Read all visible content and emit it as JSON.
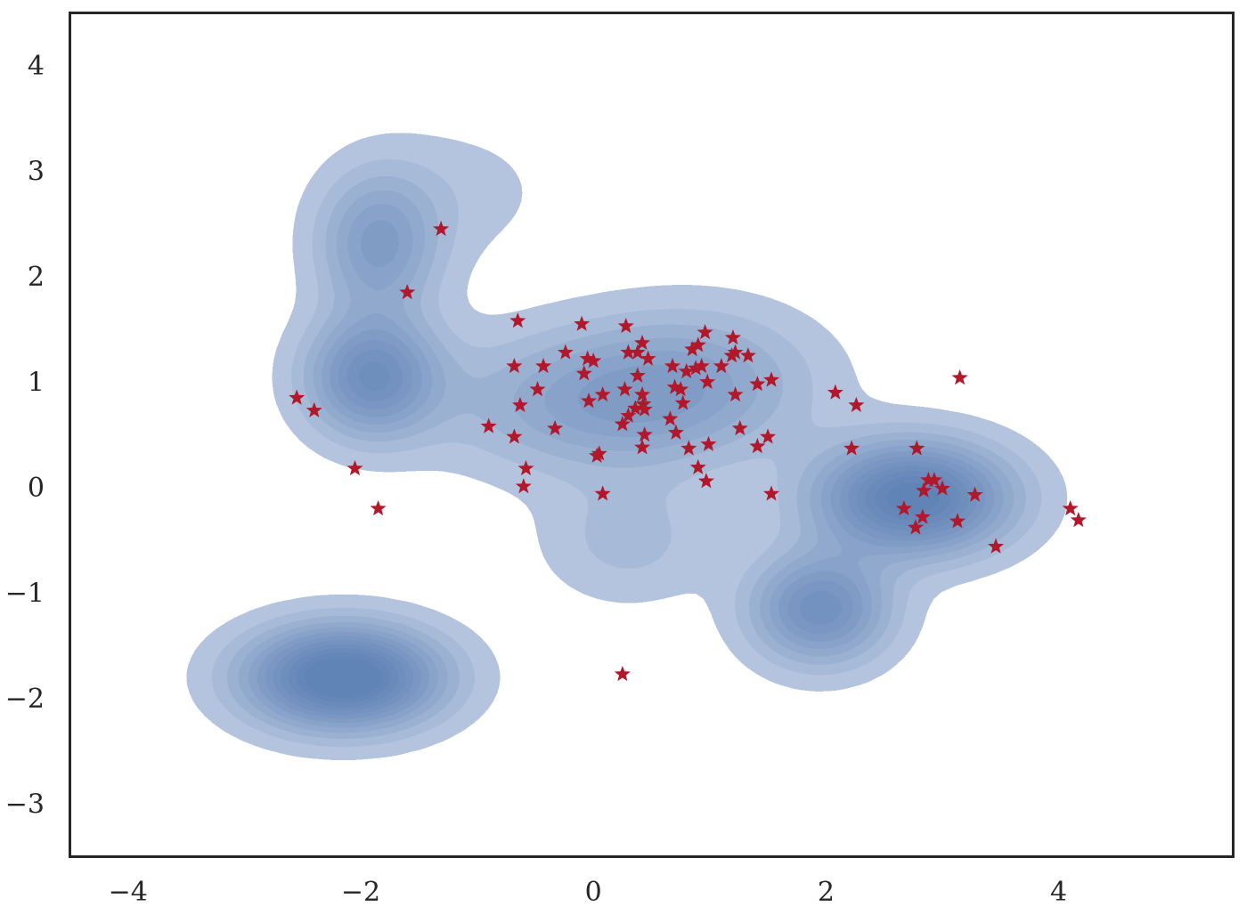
{
  "chart_data": {
    "type": "scatter",
    "title": "",
    "xlabel": "",
    "ylabel": "",
    "xlim": [
      -4.5,
      5.5
    ],
    "ylim": [
      -3.5,
      4.5
    ],
    "grid": false,
    "x_ticks": [
      -4,
      -2,
      0,
      2,
      4
    ],
    "y_ticks": [
      -3,
      -2,
      -1,
      0,
      1,
      2,
      3,
      4
    ],
    "x_tick_labels": [
      "−4",
      "−2",
      "0",
      "2",
      "4"
    ],
    "y_tick_labels": [
      "−3",
      "−2",
      "−1",
      "0",
      "1",
      "2",
      "3",
      "4"
    ],
    "density_fill_color": "#4c72b0",
    "density_levels": 12,
    "density_components": [
      {
        "mx": -2.15,
        "my": -1.8,
        "sx": 0.55,
        "sy": 0.32,
        "w": 1.0
      },
      {
        "mx": -1.9,
        "my": 1.05,
        "sx": 0.38,
        "sy": 0.38,
        "w": 0.62
      },
      {
        "mx": -1.85,
        "my": 2.3,
        "sx": 0.35,
        "sy": 0.45,
        "w": 0.42
      },
      {
        "mx": 2.75,
        "my": -0.1,
        "sx": 0.55,
        "sy": 0.35,
        "w": 0.9
      },
      {
        "mx": 1.95,
        "my": -1.15,
        "sx": 0.4,
        "sy": 0.35,
        "w": 0.6
      },
      {
        "mx": 0.1,
        "my": 0.8,
        "sx": 0.9,
        "sy": 0.45,
        "w": 0.36
      },
      {
        "mx": 0.9,
        "my": 1.1,
        "sx": 0.7,
        "sy": 0.45,
        "w": 0.2
      },
      {
        "mx": 0.3,
        "my": -0.5,
        "sx": 0.5,
        "sy": 0.4,
        "w": 0.15
      },
      {
        "mx": -1.2,
        "my": 2.8,
        "sx": 0.6,
        "sy": 0.45,
        "w": 0.08
      }
    ],
    "series": [
      {
        "marker": "star",
        "color": "#b2182b",
        "points": [
          {
            "x": -1.31,
            "y": 2.45
          },
          {
            "x": -1.6,
            "y": 1.85
          },
          {
            "x": -2.55,
            "y": 0.85
          },
          {
            "x": -2.4,
            "y": 0.73
          },
          {
            "x": -2.05,
            "y": 0.18
          },
          {
            "x": -1.85,
            "y": -0.2
          },
          {
            "x": -0.65,
            "y": 1.58
          },
          {
            "x": -0.1,
            "y": 1.55
          },
          {
            "x": 0.28,
            "y": 1.53
          },
          {
            "x": -0.68,
            "y": 1.15
          },
          {
            "x": -0.43,
            "y": 1.15
          },
          {
            "x": -0.24,
            "y": 1.28
          },
          {
            "x": -0.05,
            "y": 1.22
          },
          {
            "x": 0.0,
            "y": 1.2
          },
          {
            "x": -0.08,
            "y": 1.08
          },
          {
            "x": -0.48,
            "y": 0.93
          },
          {
            "x": -0.63,
            "y": 0.78
          },
          {
            "x": -0.9,
            "y": 0.58
          },
          {
            "x": -0.68,
            "y": 0.48
          },
          {
            "x": -0.33,
            "y": 0.56
          },
          {
            "x": -0.58,
            "y": 0.18
          },
          {
            "x": -0.6,
            "y": 0.01
          },
          {
            "x": -0.04,
            "y": 0.82
          },
          {
            "x": 0.08,
            "y": 0.88
          },
          {
            "x": 0.03,
            "y": 0.3
          },
          {
            "x": 0.05,
            "y": 0.32
          },
          {
            "x": 0.08,
            "y": -0.06
          },
          {
            "x": 0.3,
            "y": 1.28
          },
          {
            "x": 0.38,
            "y": 1.28
          },
          {
            "x": 0.42,
            "y": 1.37
          },
          {
            "x": 0.47,
            "y": 1.22
          },
          {
            "x": 0.38,
            "y": 1.06
          },
          {
            "x": 0.27,
            "y": 0.93
          },
          {
            "x": 0.42,
            "y": 0.88
          },
          {
            "x": 0.43,
            "y": 0.79
          },
          {
            "x": 0.44,
            "y": 0.74
          },
          {
            "x": 0.36,
            "y": 0.75
          },
          {
            "x": 0.3,
            "y": 0.68
          },
          {
            "x": 0.25,
            "y": 0.6
          },
          {
            "x": 0.44,
            "y": 0.5
          },
          {
            "x": 0.42,
            "y": 0.38
          },
          {
            "x": 0.25,
            "y": -1.77
          },
          {
            "x": 0.68,
            "y": 1.15
          },
          {
            "x": 0.7,
            "y": 0.95
          },
          {
            "x": 0.75,
            "y": 0.93
          },
          {
            "x": 0.77,
            "y": 0.8
          },
          {
            "x": 0.66,
            "y": 0.65
          },
          {
            "x": 0.71,
            "y": 0.52
          },
          {
            "x": 0.82,
            "y": 0.37
          },
          {
            "x": 0.85,
            "y": 1.31
          },
          {
            "x": 0.9,
            "y": 1.35
          },
          {
            "x": 0.96,
            "y": 1.47
          },
          {
            "x": 0.88,
            "y": 1.13
          },
          {
            "x": 0.93,
            "y": 1.15
          },
          {
            "x": 0.8,
            "y": 1.1
          },
          {
            "x": 0.98,
            "y": 1.0
          },
          {
            "x": 1.1,
            "y": 1.15
          },
          {
            "x": 1.19,
            "y": 1.25
          },
          {
            "x": 1.22,
            "y": 1.28
          },
          {
            "x": 1.2,
            "y": 1.42
          },
          {
            "x": 1.33,
            "y": 1.25
          },
          {
            "x": 1.22,
            "y": 0.88
          },
          {
            "x": 1.26,
            "y": 0.56
          },
          {
            "x": 0.99,
            "y": 0.41
          },
          {
            "x": 0.9,
            "y": 0.19
          },
          {
            "x": 0.97,
            "y": 0.06
          },
          {
            "x": 1.41,
            "y": 0.98
          },
          {
            "x": 1.53,
            "y": 1.02
          },
          {
            "x": 1.5,
            "y": 0.48
          },
          {
            "x": 1.41,
            "y": 0.39
          },
          {
            "x": 1.53,
            "y": -0.06
          },
          {
            "x": 2.08,
            "y": 0.9
          },
          {
            "x": 2.26,
            "y": 0.78
          },
          {
            "x": 2.22,
            "y": 0.37
          },
          {
            "x": 2.78,
            "y": 0.37
          },
          {
            "x": 2.88,
            "y": 0.07
          },
          {
            "x": 2.93,
            "y": 0.07
          },
          {
            "x": 3.0,
            "y": -0.01
          },
          {
            "x": 2.84,
            "y": -0.03
          },
          {
            "x": 2.67,
            "y": -0.2
          },
          {
            "x": 2.83,
            "y": -0.28
          },
          {
            "x": 2.77,
            "y": -0.38
          },
          {
            "x": 3.13,
            "y": -0.32
          },
          {
            "x": 3.28,
            "y": -0.07
          },
          {
            "x": 3.15,
            "y": 1.04
          },
          {
            "x": 3.46,
            "y": -0.56
          },
          {
            "x": 4.1,
            "y": -0.2
          },
          {
            "x": 4.17,
            "y": -0.31
          }
        ]
      }
    ]
  }
}
